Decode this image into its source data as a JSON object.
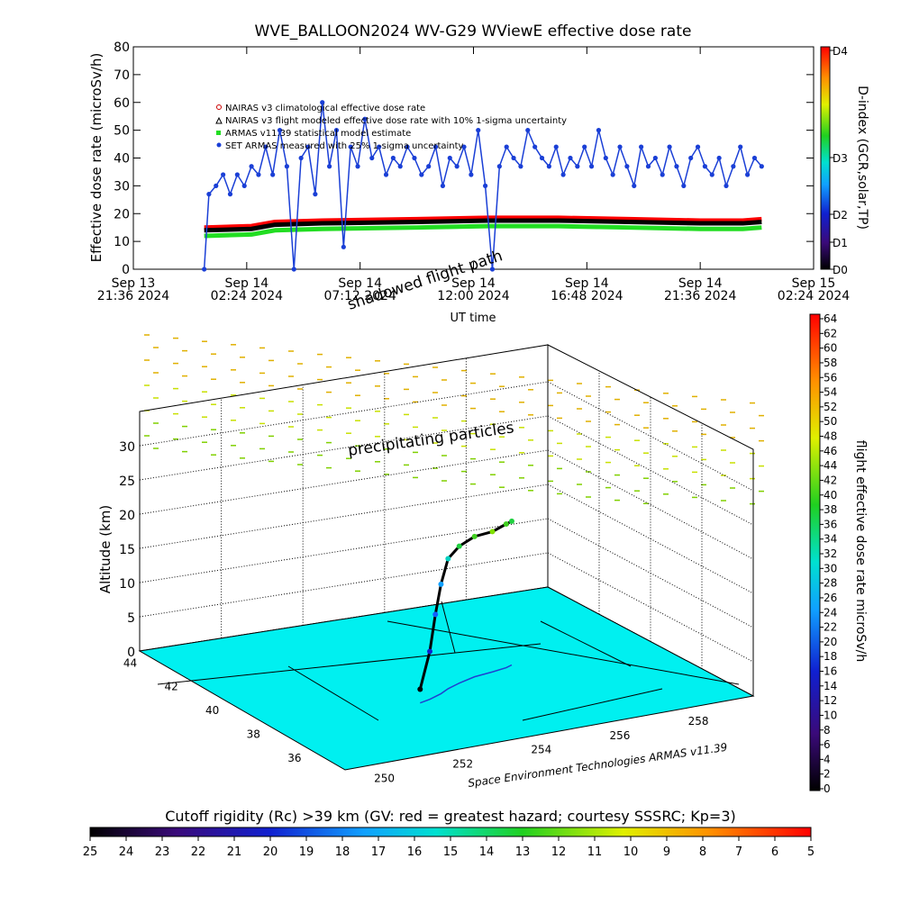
{
  "chart_data": [
    {
      "type": "line",
      "title": "WVE_BALLOON2024 WV-G29 WViewE effective dose rate",
      "xlabel": "UT time",
      "ylabel": "Effective dose rate (microSv/h)",
      "ylim": [
        0,
        80
      ],
      "yticks": [
        "0",
        "10",
        "20",
        "30",
        "40",
        "50",
        "60",
        "70",
        "80"
      ],
      "xtick_dates": [
        "Sep 13",
        "Sep 14",
        "Sep 14",
        "Sep 14",
        "Sep 14",
        "Sep 14",
        "Sep 15"
      ],
      "xtick_times": [
        "21:36 2024",
        "02:24 2024",
        "07:12 2024",
        "12:00 2024",
        "16:48 2024",
        "21:36 2024",
        "02:24 2024"
      ],
      "xrange_hours": [
        0,
        28.8
      ],
      "legend_position": "top-left",
      "legend": [
        "NAIRAS v3 climatological effective dose rate",
        "NAIRAS v3 flight modeled effective dose rate with 10% 1-sigma uncertainty",
        "ARMAS v11.39 statistical model estimate",
        "SET ARMAS measured with 25% 1-sigma uncertainty"
      ],
      "series": [
        {
          "name": "NAIRAS v3 climatological effective dose rate",
          "color": "#ff0000",
          "x": [
            3.0,
            5.0,
            6.0,
            8.0,
            12.0,
            15.0,
            18.0,
            21.0,
            24.0,
            25.8,
            26.6
          ],
          "values": [
            15,
            15.5,
            17,
            17.5,
            18,
            18.5,
            18.5,
            18,
            17.5,
            17.5,
            18
          ]
        },
        {
          "name": "NAIRAS v3 flight modeled effective dose rate with 10% 1-sigma uncertainty",
          "color": "#000000",
          "x": [
            3.0,
            5.0,
            6.0,
            8.0,
            12.0,
            15.0,
            18.0,
            21.0,
            24.0,
            25.8,
            26.6
          ],
          "values": [
            14,
            14.5,
            16,
            16.5,
            17,
            17.5,
            17.5,
            17,
            16.5,
            16.5,
            17
          ]
        },
        {
          "name": "ARMAS v11.39 statistical model estimate",
          "color": "#22dd22",
          "x": [
            3.0,
            5.0,
            6.0,
            8.0,
            12.0,
            15.0,
            18.0,
            21.0,
            24.0,
            25.8,
            26.6
          ],
          "values": [
            12,
            12.5,
            14,
            14.5,
            15,
            15.5,
            15.5,
            15,
            14.5,
            14.5,
            15
          ]
        },
        {
          "name": "SET ARMAS measured with 25% 1-sigma uncertainty",
          "color": "#1a3fd6",
          "x": [
            3.0,
            3.2,
            3.5,
            3.8,
            4.1,
            4.4,
            4.7,
            5.0,
            5.3,
            5.6,
            5.9,
            6.2,
            6.5,
            6.8,
            7.1,
            7.4,
            7.7,
            8.0,
            8.3,
            8.6,
            8.9,
            9.2,
            9.5,
            9.8,
            10.1,
            10.4,
            10.7,
            11.0,
            11.3,
            11.6,
            11.9,
            12.2,
            12.5,
            12.8,
            13.1,
            13.4,
            13.7,
            14.0,
            14.3,
            14.6,
            14.9,
            15.2,
            15.5,
            15.8,
            16.1,
            16.4,
            16.7,
            17.0,
            17.3,
            17.6,
            17.9,
            18.2,
            18.5,
            18.8,
            19.1,
            19.4,
            19.7,
            20.0,
            20.3,
            20.6,
            20.9,
            21.2,
            21.5,
            21.8,
            22.1,
            22.4,
            22.7,
            23.0,
            23.3,
            23.6,
            23.9,
            24.2,
            24.5,
            24.8,
            25.1,
            25.4,
            25.7,
            26.0,
            26.3,
            26.6
          ],
          "values": [
            0,
            27,
            30,
            34,
            27,
            34,
            30,
            37,
            34,
            44,
            34,
            50,
            37,
            0,
            40,
            44,
            27,
            60,
            37,
            50,
            8,
            44,
            37,
            54,
            40,
            44,
            34,
            40,
            37,
            44,
            40,
            34,
            37,
            44,
            30,
            40,
            37,
            44,
            34,
            50,
            30,
            0,
            37,
            44,
            40,
            37,
            50,
            44,
            40,
            37,
            44,
            34,
            40,
            37,
            44,
            37,
            50,
            40,
            34,
            44,
            37,
            30,
            44,
            37,
            40,
            34,
            44,
            37,
            30,
            40,
            44,
            37,
            34,
            40,
            30,
            37,
            44,
            34,
            40,
            37
          ]
        }
      ],
      "right_axis": {
        "label": "D-index (GCR,solar,TP)",
        "ticks": [
          "D0",
          "D1",
          "D2",
          "D3",
          "D4"
        ]
      }
    },
    {
      "type": "scatter",
      "subtype": "3d-trajectory",
      "zlabel": "Altitude (km)",
      "zlim": [
        0,
        35
      ],
      "zticks": [
        "0",
        "5",
        "10",
        "15",
        "20",
        "25",
        "30"
      ],
      "lat_ticks": [
        "36",
        "38",
        "40",
        "42",
        "44"
      ],
      "lon_ticks": [
        "250",
        "252",
        "254",
        "256",
        "258"
      ],
      "annotations": [
        "shadowed flight path",
        "precipitating particles"
      ],
      "credit": "Space Environment Technologies ARMAS v11.39",
      "flight_path": {
        "lon": [
          252.6,
          252.9,
          253.1,
          253.3,
          253.6,
          254.0,
          254.5,
          255.0,
          255.4,
          255.6
        ],
        "lat": [
          38.8,
          38.9,
          39.0,
          39.1,
          39.3,
          39.5,
          39.7,
          39.8,
          39.9,
          40.0
        ],
        "alt": [
          2,
          7,
          12,
          16,
          19,
          20,
          20.5,
          20.5,
          21,
          21
        ],
        "dose": [
          10,
          14,
          18,
          22,
          28,
          34,
          36,
          38,
          36,
          34
        ]
      },
      "colorbar": {
        "label": "flight effective dose rate microSv/h",
        "ticks": [
          "0",
          "2",
          "4",
          "6",
          "8",
          "10",
          "12",
          "14",
          "16",
          "18",
          "20",
          "22",
          "24",
          "26",
          "28",
          "30",
          "32",
          "34",
          "36",
          "38",
          "40",
          "42",
          "44",
          "46",
          "48",
          "50",
          "52",
          "54",
          "56",
          "58",
          "60",
          "62",
          "64"
        ]
      }
    },
    {
      "type": "heatmap",
      "title": "Cutoff rigidity (Rc) >39 km (GV: red = greatest hazard; courtesy SSSRC; Kp=3)",
      "ticks": [
        "25",
        "24",
        "23",
        "22",
        "21",
        "20",
        "19",
        "18",
        "17",
        "16",
        "15",
        "14",
        "13",
        "12",
        "11",
        "10",
        "9",
        "8",
        "7",
        "6",
        "5"
      ]
    }
  ]
}
